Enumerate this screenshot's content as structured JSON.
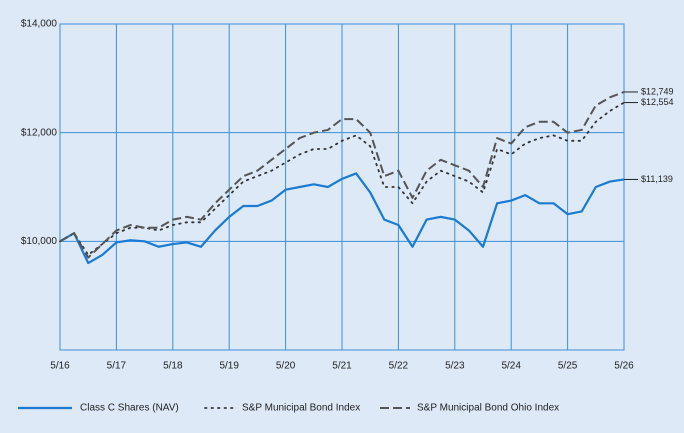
{
  "chart_data": {
    "type": "line",
    "categories": [
      "5/16",
      null,
      null,
      null,
      "5/17",
      null,
      null,
      null,
      "5/18",
      null,
      null,
      null,
      "5/19",
      null,
      null,
      null,
      "5/20",
      null,
      null,
      null,
      "5/21",
      null,
      null,
      null,
      "5/22",
      null,
      null,
      null,
      "5/23",
      null,
      null,
      null,
      "5/24",
      null,
      null,
      null,
      "5/25",
      null,
      null,
      null,
      "5/26"
    ],
    "series": [
      {
        "name": "Class C Shares (NAV)",
        "color": "#1a7ad4",
        "style": "solid",
        "values": [
          10000,
          10150,
          9600,
          9750,
          9980,
          10020,
          10000,
          9900,
          9950,
          9980,
          9900,
          10200,
          10450,
          10650,
          10650,
          10750,
          10950,
          11000,
          11050,
          11000,
          11150,
          11250,
          10900,
          10400,
          10300,
          9900,
          10400,
          10450,
          10400,
          10200,
          9900,
          10700,
          10750,
          10850,
          10700,
          10700,
          10500,
          10550,
          11000,
          11100,
          11139
        ],
        "value_labels": [
          null,
          null,
          null,
          null,
          null,
          null,
          null,
          null,
          null,
          null,
          null,
          null,
          null,
          null,
          null,
          null,
          null,
          null,
          null,
          null,
          null,
          null,
          null,
          null,
          null,
          null,
          null,
          null,
          null,
          null,
          null,
          null,
          null,
          null,
          null,
          null,
          null,
          null,
          null,
          null,
          "$11,139"
        ]
      },
      {
        "name": "S&P Municipal Bond Index",
        "color": "#333333",
        "style": "dotted",
        "values": [
          10000,
          10150,
          9750,
          9950,
          10150,
          10250,
          10250,
          10200,
          10300,
          10350,
          10350,
          10600,
          10850,
          11100,
          11200,
          11300,
          11450,
          11600,
          11700,
          11700,
          11850,
          11950,
          11750,
          11000,
          11000,
          10700,
          11100,
          11300,
          11200,
          11100,
          10900,
          11700,
          11600,
          11800,
          11900,
          11950,
          11850,
          11850,
          12200,
          12400,
          12554
        ],
        "value_labels": [
          null,
          null,
          null,
          null,
          null,
          null,
          null,
          null,
          null,
          null,
          null,
          null,
          null,
          null,
          null,
          null,
          null,
          null,
          null,
          null,
          null,
          null,
          null,
          null,
          null,
          null,
          null,
          null,
          null,
          null,
          null,
          null,
          null,
          null,
          null,
          null,
          null,
          null,
          null,
          null,
          "$12,554"
        ]
      },
      {
        "name": "S&P Municipal Bond Ohio Index",
        "color": "#555555",
        "style": "dashed",
        "values": [
          10000,
          10150,
          9700,
          9950,
          10200,
          10300,
          10250,
          10250,
          10400,
          10450,
          10400,
          10700,
          10950,
          11200,
          11300,
          11500,
          11700,
          11900,
          12000,
          12050,
          12250,
          12250,
          12000,
          11200,
          11300,
          10800,
          11300,
          11500,
          11400,
          11300,
          11000,
          11900,
          11800,
          12100,
          12200,
          12200,
          12000,
          12050,
          12500,
          12650,
          12749
        ],
        "value_labels": [
          null,
          null,
          null,
          null,
          null,
          null,
          null,
          null,
          null,
          null,
          null,
          null,
          null,
          null,
          null,
          null,
          null,
          null,
          null,
          null,
          null,
          null,
          null,
          null,
          null,
          null,
          null,
          null,
          null,
          null,
          null,
          null,
          null,
          null,
          null,
          null,
          null,
          null,
          null,
          null,
          "$12,749"
        ]
      }
    ],
    "ylim": [
      8000,
      14000
    ],
    "yticks": [
      {
        "value": 10000,
        "label": "$10,000"
      },
      {
        "value": 12000,
        "label": "$12,000"
      },
      {
        "value": 14000,
        "label": "$14,000"
      }
    ],
    "grid": true,
    "legend": "bottom"
  }
}
